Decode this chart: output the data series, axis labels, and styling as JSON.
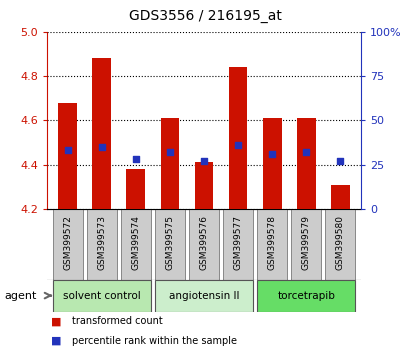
{
  "title": "GDS3556 / 216195_at",
  "samples": [
    "GSM399572",
    "GSM399573",
    "GSM399574",
    "GSM399575",
    "GSM399576",
    "GSM399577",
    "GSM399578",
    "GSM399579",
    "GSM399580"
  ],
  "transformed_counts": [
    4.68,
    4.88,
    4.38,
    4.61,
    4.41,
    4.84,
    4.61,
    4.61,
    4.31
  ],
  "percentile_ranks": [
    33,
    35,
    28,
    32,
    27,
    36,
    31,
    32,
    27
  ],
  "ylim_left": [
    4.2,
    5.0
  ],
  "ylim_right": [
    0,
    100
  ],
  "yticks_left": [
    4.2,
    4.4,
    4.6,
    4.8,
    5.0
  ],
  "yticks_right": [
    0,
    25,
    50,
    75,
    100
  ],
  "ytick_labels_right": [
    "0",
    "25",
    "50",
    "75",
    "100%"
  ],
  "bar_color": "#cc1100",
  "dot_color": "#2233bb",
  "baseline": 4.2,
  "groups": [
    {
      "label": "solvent control",
      "indices": [
        0,
        1,
        2
      ],
      "color": "#b8e8b0"
    },
    {
      "label": "angiotensin II",
      "indices": [
        3,
        4,
        5
      ],
      "color": "#cceecc"
    },
    {
      "label": "torcetrapib",
      "indices": [
        6,
        7,
        8
      ],
      "color": "#66dd66"
    }
  ],
  "agent_label": "agent",
  "legend_items": [
    {
      "label": "transformed count",
      "color": "#cc1100"
    },
    {
      "label": "percentile rank within the sample",
      "color": "#2233bb"
    }
  ],
  "left_tick_color": "#cc1100",
  "right_tick_color": "#2233bb",
  "sample_box_color": "#cccccc",
  "fig_width": 4.1,
  "fig_height": 3.54,
  "dpi": 100
}
